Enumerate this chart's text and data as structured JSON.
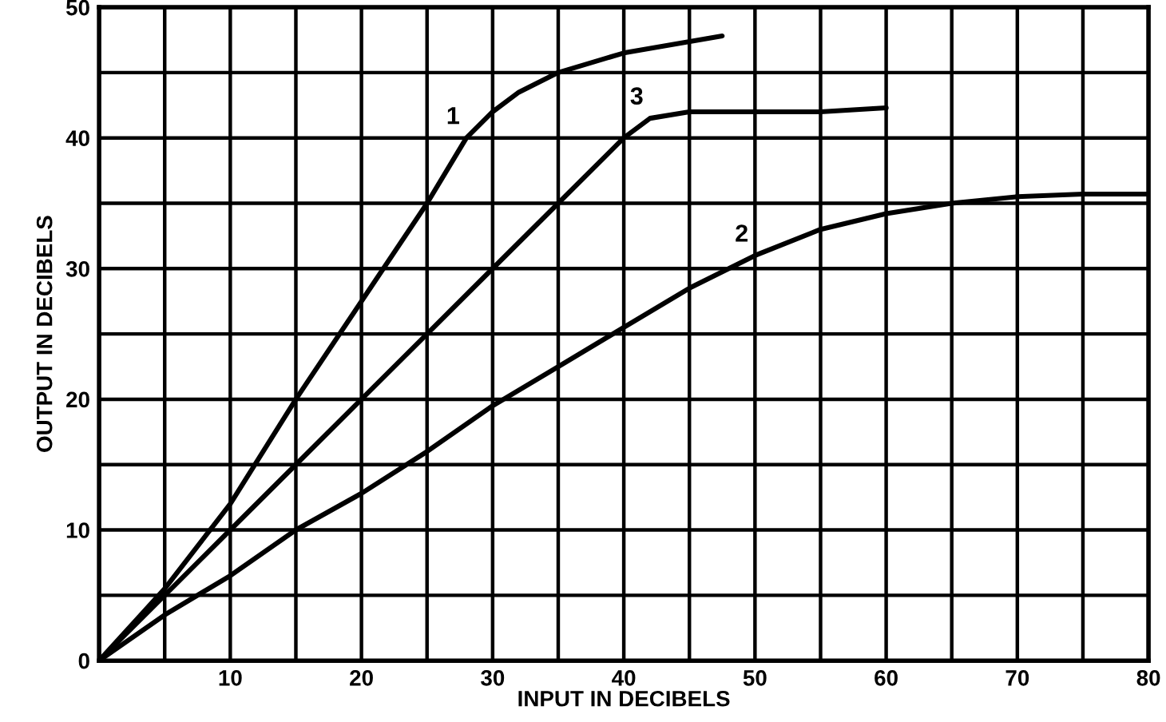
{
  "chart_data": {
    "type": "line",
    "xlabel": "INPUT IN DECIBELS",
    "ylabel": "OUTPUT IN DECIBELS",
    "xlim": [
      0,
      80
    ],
    "ylim": [
      0,
      50
    ],
    "xticks": [
      {
        "value": 5,
        "label": null
      },
      10,
      {
        "value": 15,
        "label": null
      },
      20,
      {
        "value": 25,
        "label": null
      },
      30,
      {
        "value": 35,
        "label": null
      },
      40,
      {
        "value": 45,
        "label": null
      },
      50,
      {
        "value": 55,
        "label": null
      },
      60,
      {
        "value": 65,
        "label": null
      },
      70,
      {
        "value": 75,
        "label": null
      },
      80
    ],
    "yticks": [
      0,
      {
        "value": 5,
        "label": null
      },
      10,
      {
        "value": 15,
        "label": null
      },
      20,
      {
        "value": 25,
        "label": null
      },
      30,
      {
        "value": 35,
        "label": null
      },
      40,
      {
        "value": 45,
        "label": null
      },
      50
    ],
    "grid": true,
    "marker": "none",
    "line_style": "solid",
    "series": [
      {
        "color": "#000000",
        "x": [
          0,
          5,
          10,
          15,
          20,
          25,
          28,
          30,
          32,
          35,
          40,
          47.5
        ],
        "values": [
          0,
          5.5,
          12,
          20,
          27.5,
          35,
          40,
          42,
          43.5,
          45,
          46.5,
          47.8
        ]
      },
      {
        "color": "#000000",
        "x": [
          0,
          5,
          10,
          15,
          20,
          25,
          30,
          35,
          40,
          45,
          50,
          55,
          60,
          65,
          70,
          75,
          80
        ],
        "values": [
          0,
          3.5,
          6.5,
          10,
          12.8,
          16,
          19.5,
          22.5,
          25.5,
          28.5,
          31,
          33,
          34.2,
          35,
          35.5,
          35.7,
          35.7
        ]
      },
      {
        "color": "#000000",
        "x": [
          0,
          5,
          10,
          15,
          20,
          25,
          30,
          35,
          40,
          42,
          45,
          50,
          55,
          60
        ],
        "values": [
          0,
          5,
          10,
          15,
          20,
          25,
          30,
          35,
          40,
          41.5,
          42,
          42,
          42,
          42.3
        ]
      }
    ],
    "annotations": [
      {
        "text": "1",
        "x": 28,
        "y": 40
      },
      {
        "text": "2",
        "x": 50,
        "y": 31
      },
      {
        "text": "3",
        "x": 42,
        "y": 41.5
      }
    ]
  }
}
